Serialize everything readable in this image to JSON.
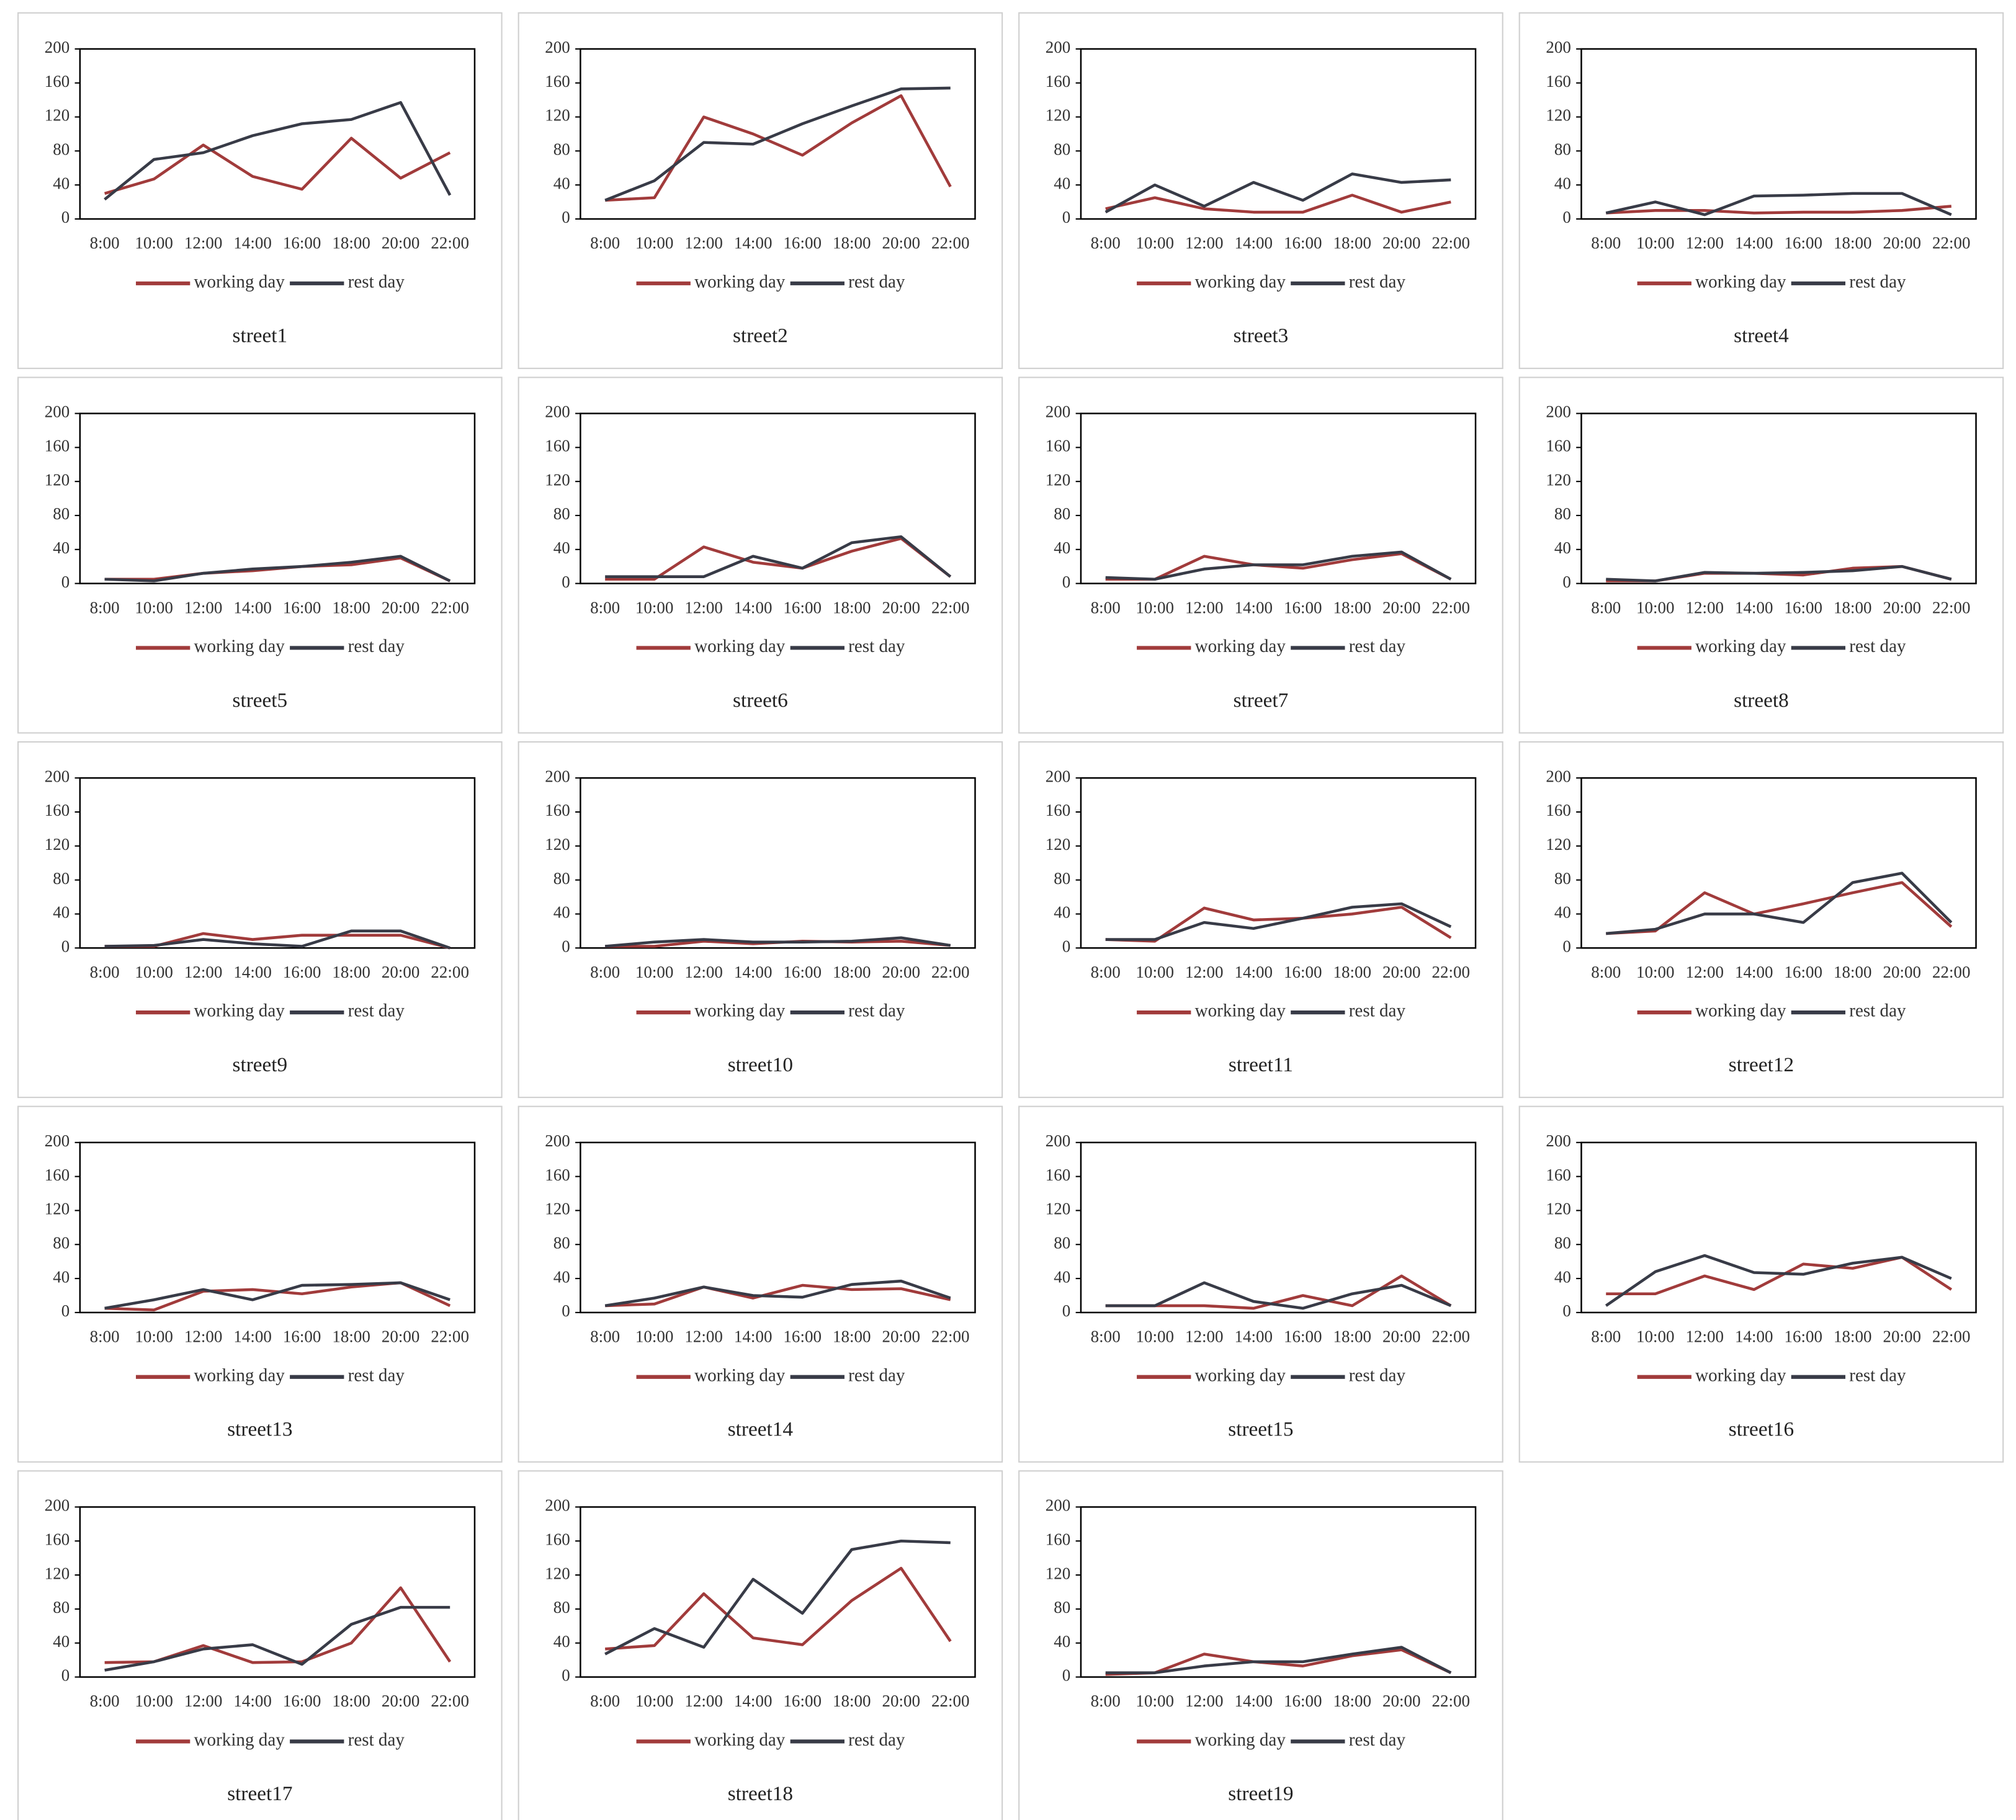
{
  "chart_data": [
    {
      "type": "line",
      "title": "street1",
      "categories": [
        "8:00",
        "10:00",
        "12:00",
        "14:00",
        "16:00",
        "18:00",
        "20:00",
        "22:00"
      ],
      "ylim": [
        0,
        200
      ],
      "yticks": [
        0,
        40,
        80,
        120,
        160,
        200
      ],
      "series": [
        {
          "name": "working day",
          "color": "#a13b3b",
          "values": [
            30,
            47,
            87,
            50,
            35,
            95,
            48,
            78
          ]
        },
        {
          "name": "rest day",
          "color": "#383b47",
          "values": [
            23,
            70,
            78,
            98,
            112,
            117,
            137,
            28
          ]
        }
      ]
    },
    {
      "type": "line",
      "title": "street2",
      "categories": [
        "8:00",
        "10:00",
        "12:00",
        "14:00",
        "16:00",
        "18:00",
        "20:00",
        "22:00"
      ],
      "ylim": [
        0,
        200
      ],
      "yticks": [
        0,
        40,
        80,
        120,
        160,
        200
      ],
      "series": [
        {
          "name": "working day",
          "color": "#a13b3b",
          "values": [
            22,
            25,
            120,
            100,
            75,
            113,
            145,
            38
          ]
        },
        {
          "name": "rest day",
          "color": "#383b47",
          "values": [
            22,
            45,
            90,
            88,
            112,
            133,
            153,
            154
          ]
        }
      ]
    },
    {
      "type": "line",
      "title": "street3",
      "categories": [
        "8:00",
        "10:00",
        "12:00",
        "14:00",
        "16:00",
        "18:00",
        "20:00",
        "22:00"
      ],
      "ylim": [
        0,
        200
      ],
      "yticks": [
        0,
        40,
        80,
        120,
        160,
        200
      ],
      "series": [
        {
          "name": "working day",
          "color": "#a13b3b",
          "values": [
            12,
            25,
            12,
            8,
            8,
            28,
            8,
            20
          ]
        },
        {
          "name": "rest day",
          "color": "#383b47",
          "values": [
            8,
            40,
            15,
            43,
            22,
            53,
            43,
            46
          ]
        }
      ]
    },
    {
      "type": "line",
      "title": "street4",
      "categories": [
        "8:00",
        "10:00",
        "12:00",
        "14:00",
        "16:00",
        "18:00",
        "20:00",
        "22:00"
      ],
      "ylim": [
        0,
        200
      ],
      "yticks": [
        0,
        40,
        80,
        120,
        160,
        200
      ],
      "series": [
        {
          "name": "working day",
          "color": "#a13b3b",
          "values": [
            7,
            10,
            10,
            7,
            8,
            8,
            10,
            15
          ]
        },
        {
          "name": "rest day",
          "color": "#383b47",
          "values": [
            7,
            20,
            5,
            27,
            28,
            30,
            30,
            5
          ]
        }
      ]
    },
    {
      "type": "line",
      "title": "street5",
      "categories": [
        "8:00",
        "10:00",
        "12:00",
        "14:00",
        "16:00",
        "18:00",
        "20:00",
        "22:00"
      ],
      "ylim": [
        0,
        200
      ],
      "yticks": [
        0,
        40,
        80,
        120,
        160,
        200
      ],
      "series": [
        {
          "name": "working day",
          "color": "#a13b3b",
          "values": [
            5,
            5,
            12,
            15,
            20,
            22,
            30,
            3
          ]
        },
        {
          "name": "rest day",
          "color": "#383b47",
          "values": [
            5,
            3,
            12,
            17,
            20,
            25,
            32,
            3
          ]
        }
      ]
    },
    {
      "type": "line",
      "title": "street6",
      "categories": [
        "8:00",
        "10:00",
        "12:00",
        "14:00",
        "16:00",
        "18:00",
        "20:00",
        "22:00"
      ],
      "ylim": [
        0,
        200
      ],
      "yticks": [
        0,
        40,
        80,
        120,
        160,
        200
      ],
      "series": [
        {
          "name": "working day",
          "color": "#a13b3b",
          "values": [
            5,
            5,
            43,
            25,
            18,
            38,
            53,
            8
          ]
        },
        {
          "name": "rest day",
          "color": "#383b47",
          "values": [
            8,
            8,
            8,
            32,
            18,
            48,
            55,
            8
          ]
        }
      ]
    },
    {
      "type": "line",
      "title": "street7",
      "categories": [
        "8:00",
        "10:00",
        "12:00",
        "14:00",
        "16:00",
        "18:00",
        "20:00",
        "22:00"
      ],
      "ylim": [
        0,
        200
      ],
      "yticks": [
        0,
        40,
        80,
        120,
        160,
        200
      ],
      "series": [
        {
          "name": "working day",
          "color": "#a13b3b",
          "values": [
            5,
            5,
            32,
            22,
            18,
            28,
            35,
            5
          ]
        },
        {
          "name": "rest day",
          "color": "#383b47",
          "values": [
            7,
            5,
            17,
            22,
            22,
            32,
            37,
            5
          ]
        }
      ]
    },
    {
      "type": "line",
      "title": "street8",
      "categories": [
        "8:00",
        "10:00",
        "12:00",
        "14:00",
        "16:00",
        "18:00",
        "20:00",
        "22:00"
      ],
      "ylim": [
        0,
        200
      ],
      "yticks": [
        0,
        40,
        80,
        120,
        160,
        200
      ],
      "series": [
        {
          "name": "working day",
          "color": "#a13b3b",
          "values": [
            3,
            3,
            12,
            12,
            10,
            18,
            20,
            5
          ]
        },
        {
          "name": "rest day",
          "color": "#383b47",
          "values": [
            5,
            3,
            13,
            12,
            13,
            15,
            20,
            5
          ]
        }
      ]
    },
    {
      "type": "line",
      "title": "street9",
      "categories": [
        "8:00",
        "10:00",
        "12:00",
        "14:00",
        "16:00",
        "18:00",
        "20:00",
        "22:00"
      ],
      "ylim": [
        0,
        200
      ],
      "yticks": [
        0,
        40,
        80,
        120,
        160,
        200
      ],
      "series": [
        {
          "name": "working day",
          "color": "#a13b3b",
          "values": [
            2,
            2,
            17,
            10,
            15,
            15,
            15,
            0
          ]
        },
        {
          "name": "rest day",
          "color": "#383b47",
          "values": [
            2,
            3,
            10,
            5,
            2,
            20,
            20,
            0
          ]
        }
      ]
    },
    {
      "type": "line",
      "title": "street10",
      "categories": [
        "8:00",
        "10:00",
        "12:00",
        "14:00",
        "16:00",
        "18:00",
        "20:00",
        "22:00"
      ],
      "ylim": [
        0,
        200
      ],
      "yticks": [
        0,
        40,
        80,
        120,
        160,
        200
      ],
      "series": [
        {
          "name": "working day",
          "color": "#a13b3b",
          "values": [
            2,
            2,
            8,
            5,
            8,
            7,
            8,
            3
          ]
        },
        {
          "name": "rest day",
          "color": "#383b47",
          "values": [
            2,
            7,
            10,
            7,
            7,
            8,
            12,
            3
          ]
        }
      ]
    },
    {
      "type": "line",
      "title": "street11",
      "categories": [
        "8:00",
        "10:00",
        "12:00",
        "14:00",
        "16:00",
        "18:00",
        "20:00",
        "22:00"
      ],
      "ylim": [
        0,
        200
      ],
      "yticks": [
        0,
        40,
        80,
        120,
        160,
        200
      ],
      "series": [
        {
          "name": "working day",
          "color": "#a13b3b",
          "values": [
            10,
            8,
            47,
            33,
            35,
            40,
            48,
            12
          ]
        },
        {
          "name": "rest day",
          "color": "#383b47",
          "values": [
            10,
            10,
            30,
            23,
            35,
            48,
            52,
            25
          ]
        }
      ]
    },
    {
      "type": "line",
      "title": "street12",
      "categories": [
        "8:00",
        "10:00",
        "12:00",
        "14:00",
        "16:00",
        "18:00",
        "20:00",
        "22:00"
      ],
      "ylim": [
        0,
        200
      ],
      "yticks": [
        0,
        40,
        80,
        120,
        160,
        200
      ],
      "series": [
        {
          "name": "working day",
          "color": "#a13b3b",
          "values": [
            17,
            20,
            65,
            40,
            52,
            65,
            77,
            25
          ]
        },
        {
          "name": "rest day",
          "color": "#383b47",
          "values": [
            17,
            22,
            40,
            40,
            30,
            77,
            88,
            30
          ]
        }
      ]
    },
    {
      "type": "line",
      "title": "street13",
      "categories": [
        "8:00",
        "10:00",
        "12:00",
        "14:00",
        "16:00",
        "18:00",
        "20:00",
        "22:00"
      ],
      "ylim": [
        0,
        200
      ],
      "yticks": [
        0,
        40,
        80,
        120,
        160,
        200
      ],
      "series": [
        {
          "name": "working day",
          "color": "#a13b3b",
          "values": [
            5,
            3,
            25,
            27,
            22,
            30,
            35,
            8
          ]
        },
        {
          "name": "rest day",
          "color": "#383b47",
          "values": [
            5,
            15,
            27,
            15,
            32,
            33,
            35,
            15
          ]
        }
      ]
    },
    {
      "type": "line",
      "title": "street14",
      "categories": [
        "8:00",
        "10:00",
        "12:00",
        "14:00",
        "16:00",
        "18:00",
        "20:00",
        "22:00"
      ],
      "ylim": [
        0,
        200
      ],
      "yticks": [
        0,
        40,
        80,
        120,
        160,
        200
      ],
      "series": [
        {
          "name": "working day",
          "color": "#a13b3b",
          "values": [
            8,
            10,
            30,
            17,
            32,
            27,
            28,
            15
          ]
        },
        {
          "name": "rest day",
          "color": "#383b47",
          "values": [
            8,
            17,
            30,
            20,
            18,
            33,
            37,
            17
          ]
        }
      ]
    },
    {
      "type": "line",
      "title": "street15",
      "categories": [
        "8:00",
        "10:00",
        "12:00",
        "14:00",
        "16:00",
        "18:00",
        "20:00",
        "22:00"
      ],
      "ylim": [
        0,
        200
      ],
      "yticks": [
        0,
        40,
        80,
        120,
        160,
        200
      ],
      "series": [
        {
          "name": "working day",
          "color": "#a13b3b",
          "values": [
            8,
            8,
            8,
            5,
            20,
            8,
            43,
            8
          ]
        },
        {
          "name": "rest day",
          "color": "#383b47",
          "values": [
            8,
            8,
            35,
            13,
            5,
            22,
            32,
            8
          ]
        }
      ]
    },
    {
      "type": "line",
      "title": "street16",
      "categories": [
        "8:00",
        "10:00",
        "12:00",
        "14:00",
        "16:00",
        "18:00",
        "20:00",
        "22:00"
      ],
      "ylim": [
        0,
        200
      ],
      "yticks": [
        0,
        40,
        80,
        120,
        160,
        200
      ],
      "series": [
        {
          "name": "working day",
          "color": "#a13b3b",
          "values": [
            22,
            22,
            43,
            27,
            57,
            52,
            65,
            27
          ]
        },
        {
          "name": "rest day",
          "color": "#383b47",
          "values": [
            8,
            48,
            67,
            47,
            45,
            58,
            65,
            40
          ]
        }
      ]
    },
    {
      "type": "line",
      "title": "street17",
      "categories": [
        "8:00",
        "10:00",
        "12:00",
        "14:00",
        "16:00",
        "18:00",
        "20:00",
        "22:00"
      ],
      "ylim": [
        0,
        200
      ],
      "yticks": [
        0,
        40,
        80,
        120,
        160,
        200
      ],
      "series": [
        {
          "name": "working day",
          "color": "#a13b3b",
          "values": [
            17,
            18,
            37,
            17,
            18,
            40,
            105,
            18
          ]
        },
        {
          "name": "rest day",
          "color": "#383b47",
          "values": [
            8,
            18,
            33,
            38,
            15,
            62,
            82,
            82
          ]
        }
      ]
    },
    {
      "type": "line",
      "title": "street18",
      "categories": [
        "8:00",
        "10:00",
        "12:00",
        "14:00",
        "16:00",
        "18:00",
        "20:00",
        "22:00"
      ],
      "ylim": [
        0,
        200
      ],
      "yticks": [
        0,
        40,
        80,
        120,
        160,
        200
      ],
      "series": [
        {
          "name": "working day",
          "color": "#a13b3b",
          "values": [
            33,
            37,
            98,
            46,
            38,
            90,
            128,
            42
          ]
        },
        {
          "name": "rest day",
          "color": "#383b47",
          "values": [
            27,
            57,
            35,
            115,
            75,
            150,
            160,
            158
          ]
        }
      ]
    },
    {
      "type": "line",
      "title": "street19",
      "categories": [
        "8:00",
        "10:00",
        "12:00",
        "14:00",
        "16:00",
        "18:00",
        "20:00",
        "22:00"
      ],
      "ylim": [
        0,
        200
      ],
      "yticks": [
        0,
        40,
        80,
        120,
        160,
        200
      ],
      "series": [
        {
          "name": "working day",
          "color": "#a13b3b",
          "values": [
            3,
            5,
            27,
            18,
            13,
            25,
            32,
            5
          ]
        },
        {
          "name": "rest day",
          "color": "#383b47",
          "values": [
            5,
            5,
            13,
            18,
            18,
            27,
            35,
            5
          ]
        }
      ]
    }
  ]
}
